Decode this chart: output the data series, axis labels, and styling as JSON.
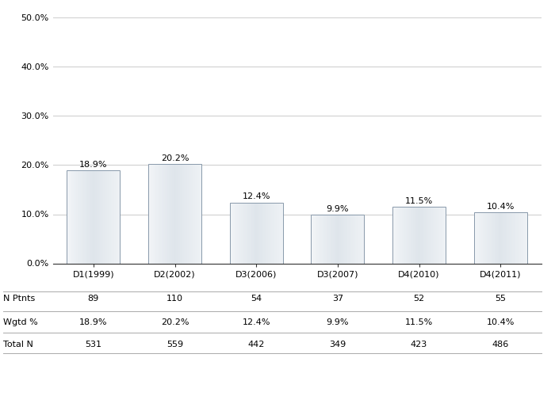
{
  "categories": [
    "D1(1999)",
    "D2(2002)",
    "D3(2006)",
    "D3(2007)",
    "D4(2010)",
    "D4(2011)"
  ],
  "values": [
    18.9,
    20.2,
    12.4,
    9.9,
    11.5,
    10.4
  ],
  "labels": [
    "18.9%",
    "20.2%",
    "12.4%",
    "9.9%",
    "11.5%",
    "10.4%"
  ],
  "n_ptnts": [
    "89",
    "110",
    "54",
    "37",
    "52",
    "55"
  ],
  "wgtd_pct": [
    "18.9%",
    "20.2%",
    "12.4%",
    "9.9%",
    "11.5%",
    "10.4%"
  ],
  "total_n": [
    "531",
    "559",
    "442",
    "349",
    "423",
    "486"
  ],
  "ylim": [
    0,
    50
  ],
  "yticks": [
    0,
    10,
    20,
    30,
    40,
    50
  ],
  "ytick_labels": [
    "0.0%",
    "10.0%",
    "20.0%",
    "30.0%",
    "40.0%",
    "50.0%"
  ],
  "background_color": "#ffffff",
  "grid_color": "#d0d0d0",
  "label_fontsize": 8,
  "tick_fontsize": 8,
  "table_fontsize": 8,
  "row_labels": [
    "N Ptnts",
    "Wgtd %",
    "Total N"
  ]
}
